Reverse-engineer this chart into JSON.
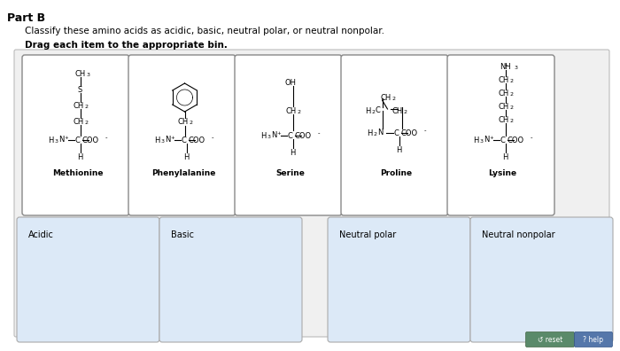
{
  "title_part": "Part B",
  "subtitle": "Classify these amino acids as acidic, basic, neutral polar, or neutral nonpolar.",
  "instruction": "Drag each item to the appropriate bin.",
  "bg_color": "#ffffff",
  "card_bg": "#ffffff",
  "card_border": "#888888",
  "bin_bg": "#dce9f7",
  "bin_border": "#aaaaaa",
  "amino_acids": [
    "Methionine",
    "Phenylalanine",
    "Serine",
    "Proline",
    "Lysine"
  ],
  "bins": [
    "Acidic",
    "Basic",
    "Neutral polar",
    "Neutral nonpolar"
  ],
  "button_reset_color": "#5a8a6a",
  "button_help_color": "#5577aa",
  "outer_bg": "#f0f0f0"
}
